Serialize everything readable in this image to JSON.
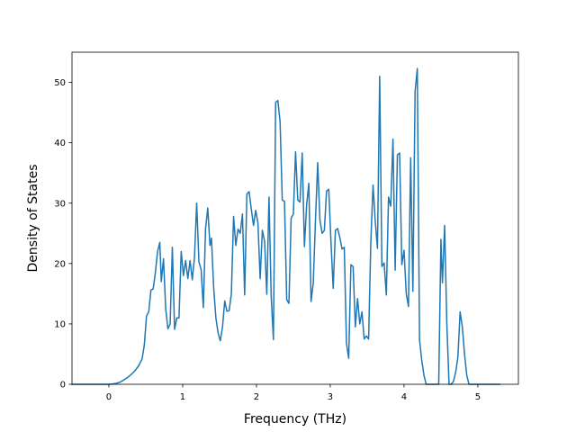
{
  "chart_data": {
    "type": "line",
    "title": "",
    "xlabel": "Frequency (THz)",
    "ylabel": "Density of States",
    "xlim": [
      -0.5,
      5.55
    ],
    "ylim": [
      0,
      55
    ],
    "xticks": [
      "0",
      "1",
      "2",
      "3",
      "4",
      "5"
    ],
    "yticks": [
      "0",
      "10",
      "20",
      "30",
      "40",
      "50"
    ],
    "grid": false,
    "legend": "none",
    "series": [
      {
        "color": "#1f77b4",
        "points": [
          [
            -0.5,
            0
          ],
          [
            -0.3,
            0
          ],
          [
            -0.1,
            0
          ],
          [
            0.0,
            0
          ],
          [
            0.05,
            0.05
          ],
          [
            0.1,
            0.15
          ],
          [
            0.15,
            0.35
          ],
          [
            0.2,
            0.7
          ],
          [
            0.25,
            1.1
          ],
          [
            0.3,
            1.6
          ],
          [
            0.35,
            2.2
          ],
          [
            0.4,
            3.0
          ],
          [
            0.45,
            4.2
          ],
          [
            0.48,
            6.5
          ],
          [
            0.51,
            11.3
          ],
          [
            0.54,
            12.0
          ],
          [
            0.57,
            15.6
          ],
          [
            0.6,
            15.8
          ],
          [
            0.63,
            18.5
          ],
          [
            0.66,
            22.0
          ],
          [
            0.69,
            23.5
          ],
          [
            0.71,
            17.0
          ],
          [
            0.74,
            20.8
          ],
          [
            0.77,
            12.5
          ],
          [
            0.8,
            9.2
          ],
          [
            0.83,
            10.0
          ],
          [
            0.86,
            22.7
          ],
          [
            0.89,
            9.1
          ],
          [
            0.92,
            11.0
          ],
          [
            0.95,
            11.0
          ],
          [
            0.98,
            22.0
          ],
          [
            1.01,
            18.0
          ],
          [
            1.04,
            20.5
          ],
          [
            1.07,
            17.5
          ],
          [
            1.1,
            20.5
          ],
          [
            1.13,
            17.3
          ],
          [
            1.16,
            21.0
          ],
          [
            1.19,
            30.0
          ],
          [
            1.22,
            20.3
          ],
          [
            1.25,
            19.0
          ],
          [
            1.28,
            12.7
          ],
          [
            1.31,
            25.8
          ],
          [
            1.34,
            29.2
          ],
          [
            1.37,
            23.0
          ],
          [
            1.39,
            24.2
          ],
          [
            1.42,
            16.0
          ],
          [
            1.45,
            11.0
          ],
          [
            1.48,
            8.5
          ],
          [
            1.51,
            7.2
          ],
          [
            1.54,
            9.5
          ],
          [
            1.57,
            13.8
          ],
          [
            1.6,
            12.1
          ],
          [
            1.63,
            12.2
          ],
          [
            1.66,
            15.0
          ],
          [
            1.69,
            27.8
          ],
          [
            1.72,
            23.0
          ],
          [
            1.75,
            25.7
          ],
          [
            1.78,
            25.0
          ],
          [
            1.81,
            28.2
          ],
          [
            1.84,
            14.8
          ],
          [
            1.87,
            31.5
          ],
          [
            1.9,
            31.9
          ],
          [
            1.93,
            29.0
          ],
          [
            1.96,
            26.3
          ],
          [
            1.99,
            28.8
          ],
          [
            2.02,
            26.7
          ],
          [
            2.05,
            17.5
          ],
          [
            2.08,
            25.5
          ],
          [
            2.11,
            23.7
          ],
          [
            2.14,
            14.9
          ],
          [
            2.17,
            31.0
          ],
          [
            2.2,
            14.5
          ],
          [
            2.23,
            7.4
          ],
          [
            2.26,
            46.7
          ],
          [
            2.29,
            47.0
          ],
          [
            2.32,
            43.5
          ],
          [
            2.35,
            30.5
          ],
          [
            2.38,
            30.3
          ],
          [
            2.41,
            14.0
          ],
          [
            2.44,
            13.4
          ],
          [
            2.47,
            27.5
          ],
          [
            2.5,
            28.2
          ],
          [
            2.53,
            38.5
          ],
          [
            2.56,
            30.5
          ],
          [
            2.59,
            30.2
          ],
          [
            2.62,
            38.3
          ],
          [
            2.65,
            22.8
          ],
          [
            2.68,
            29.7
          ],
          [
            2.71,
            33.3
          ],
          [
            2.74,
            13.7
          ],
          [
            2.77,
            16.8
          ],
          [
            2.8,
            27.3
          ],
          [
            2.83,
            36.7
          ],
          [
            2.86,
            27.2
          ],
          [
            2.89,
            25.0
          ],
          [
            2.92,
            25.5
          ],
          [
            2.95,
            32.0
          ],
          [
            2.98,
            32.3
          ],
          [
            3.01,
            23.5
          ],
          [
            3.04,
            15.9
          ],
          [
            3.07,
            25.5
          ],
          [
            3.1,
            25.8
          ],
          [
            3.13,
            24.3
          ],
          [
            3.16,
            22.4
          ],
          [
            3.19,
            22.7
          ],
          [
            3.22,
            6.8
          ],
          [
            3.25,
            4.3
          ],
          [
            3.28,
            19.8
          ],
          [
            3.31,
            19.5
          ],
          [
            3.34,
            9.5
          ],
          [
            3.37,
            14.2
          ],
          [
            3.4,
            10.0
          ],
          [
            3.43,
            12.0
          ],
          [
            3.46,
            7.5
          ],
          [
            3.49,
            8.0
          ],
          [
            3.52,
            7.5
          ],
          [
            3.55,
            23.6
          ],
          [
            3.58,
            33.0
          ],
          [
            3.61,
            27.0
          ],
          [
            3.64,
            22.5
          ],
          [
            3.67,
            51.0
          ],
          [
            3.7,
            19.5
          ],
          [
            3.73,
            20.1
          ],
          [
            3.76,
            14.8
          ],
          [
            3.79,
            31.0
          ],
          [
            3.82,
            29.5
          ],
          [
            3.85,
            40.6
          ],
          [
            3.88,
            18.9
          ],
          [
            3.91,
            38.0
          ],
          [
            3.94,
            38.3
          ],
          [
            3.97,
            19.8
          ],
          [
            4.0,
            22.2
          ],
          [
            4.03,
            15.0
          ],
          [
            4.06,
            12.9
          ],
          [
            4.09,
            37.5
          ],
          [
            4.12,
            15.4
          ],
          [
            4.15,
            48.5
          ],
          [
            4.18,
            52.3
          ],
          [
            4.21,
            7.4
          ],
          [
            4.24,
            4.0
          ],
          [
            4.27,
            1.5
          ],
          [
            4.3,
            0
          ],
          [
            4.38,
            0
          ],
          [
            4.44,
            0
          ],
          [
            4.47,
            0
          ],
          [
            4.5,
            24.0
          ],
          [
            4.52,
            16.8
          ],
          [
            4.55,
            26.3
          ],
          [
            4.58,
            10.0
          ],
          [
            4.61,
            0
          ],
          [
            4.64,
            0
          ],
          [
            4.67,
            0.5
          ],
          [
            4.7,
            2.0
          ],
          [
            4.73,
            4.5
          ],
          [
            4.76,
            12.0
          ],
          [
            4.79,
            9.5
          ],
          [
            4.82,
            5.0
          ],
          [
            4.85,
            1.5
          ],
          [
            4.88,
            0
          ],
          [
            5.0,
            0
          ],
          [
            5.3,
            0
          ]
        ]
      }
    ]
  }
}
